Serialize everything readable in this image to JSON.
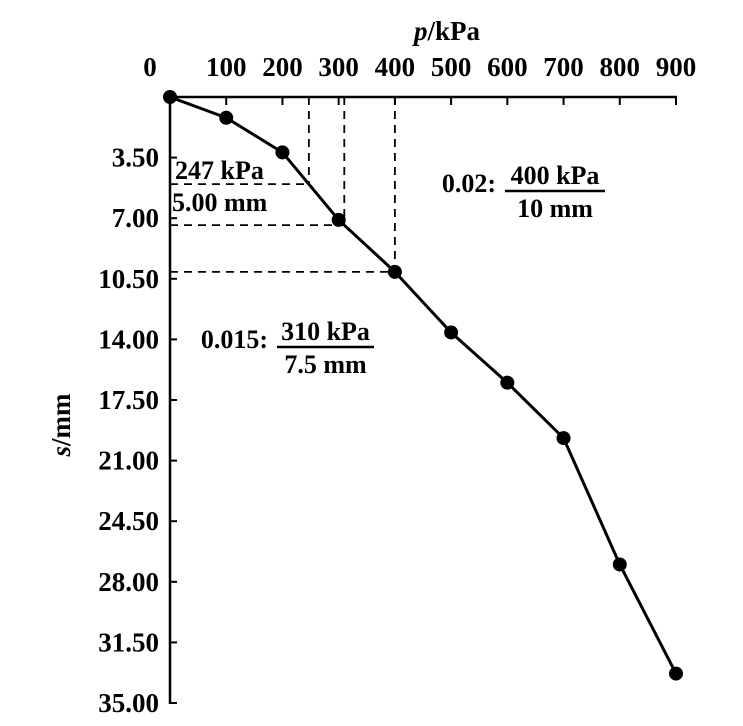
{
  "figure": {
    "background": "#ffffff",
    "ink": "#000000",
    "description": "Plate load test p-s curve (load vs settlement)"
  },
  "chart_data": {
    "type": "line",
    "xlabel": "p/kPa",
    "ylabel": "s/mm",
    "x_axis_position": "top",
    "y_axis_direction": "downward",
    "xlim": [
      0,
      900
    ],
    "ylim": [
      0,
      35
    ],
    "x_ticks": [
      0,
      100,
      200,
      300,
      400,
      500,
      600,
      700,
      800,
      900
    ],
    "y_tick_labels": [
      "3.50",
      "7.00",
      "10.50",
      "14.00",
      "17.50",
      "21.00",
      "24.50",
      "28.00",
      "31.50",
      "35.00"
    ],
    "grid": false,
    "legend": false,
    "marker": "filled-circle",
    "series": [
      {
        "name": "load-settlement curve",
        "p_kPa": [
          0,
          100,
          200,
          300,
          400,
          500,
          600,
          700,
          800,
          900
        ],
        "s_mm": [
          0,
          1.2,
          3.2,
          7.1,
          10.1,
          13.6,
          16.5,
          19.7,
          27.0,
          33.3
        ]
      }
    ],
    "guides": [
      {
        "p_kPa": 247
      },
      {
        "p_kPa": 310
      },
      {
        "p_kPa": 400
      }
    ],
    "annotations": [
      {
        "prefix": "",
        "numerator": "247 kPa",
        "denominator": "5.00 mm"
      },
      {
        "prefix": "0.02:",
        "numerator": "400 kPa",
        "denominator": "10 mm"
      },
      {
        "prefix": "0.015:",
        "numerator": "310 kPa",
        "denominator": "7.5 mm"
      }
    ]
  }
}
